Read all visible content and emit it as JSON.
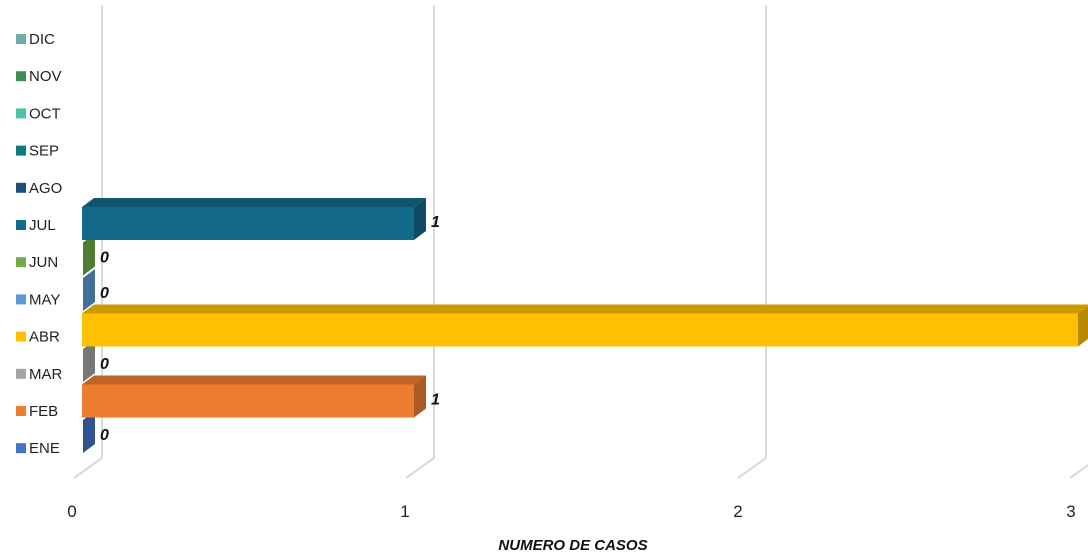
{
  "chart_data": {
    "type": "bar",
    "orientation": "horizontal",
    "style": "3d",
    "categories": [
      "ENE",
      "FEB",
      "MAR",
      "ABR",
      "MAY",
      "JUN",
      "JUL",
      "AGO",
      "SEP",
      "OCT",
      "NOV",
      "DIC"
    ],
    "values": [
      0,
      1,
      0,
      3,
      0,
      0,
      1,
      null,
      null,
      null,
      null,
      null
    ],
    "colors": [
      "#4472C4",
      "#ED7D31",
      "#A5A5A5",
      "#FFC000",
      "#5B9BD5",
      "#70AD47",
      "#136A8A",
      "#1F4E79",
      "#0E7C7B",
      "#4DC4A6",
      "#3E8E55",
      "#6AB0A8"
    ],
    "xlabel": "NUMERO DE CASOS",
    "ylabel": "",
    "title": "",
    "xlim": [
      0,
      3
    ],
    "x_ticks": [
      "0",
      "1",
      "2",
      "3"
    ],
    "data_labels": [
      "0",
      "1",
      "0",
      "",
      "0",
      "0",
      "1",
      "",
      "",
      "",
      "",
      ""
    ],
    "grid": "vertical",
    "legend_position": "left"
  }
}
